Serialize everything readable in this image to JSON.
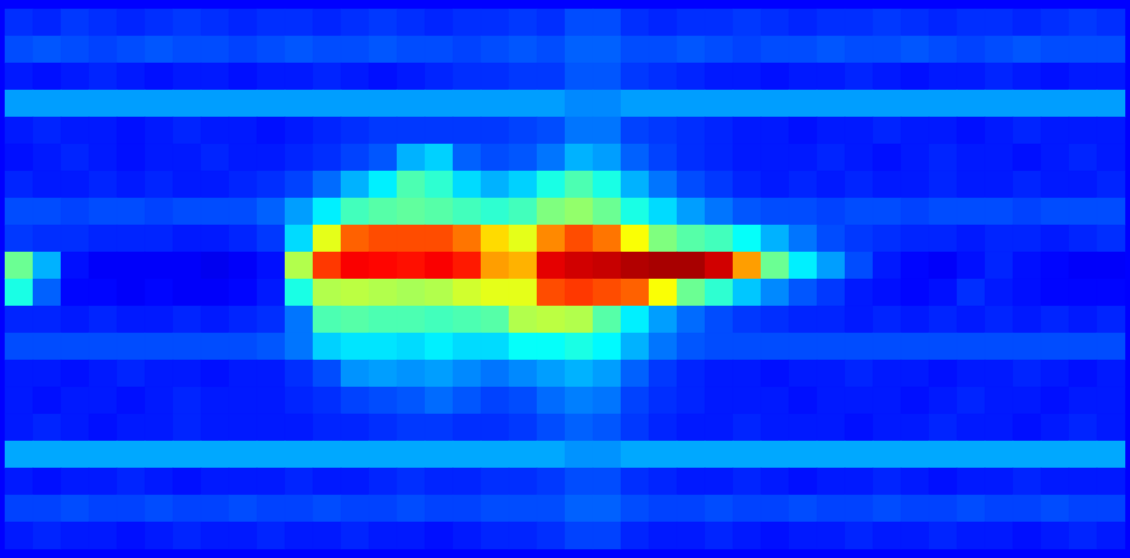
{
  "chart_data": {
    "type": "heatmap",
    "tick_labels": false,
    "color_range": [
      0,
      100
    ],
    "cells": [
      [
        17,
        16,
        18,
        17,
        16,
        17,
        18,
        17,
        16,
        17,
        17,
        16,
        17,
        18,
        17,
        16,
        17,
        17,
        18,
        17,
        20,
        20,
        17,
        16,
        17,
        17,
        18,
        17,
        16,
        17,
        17,
        18,
        17,
        16,
        17,
        17,
        16,
        17,
        18,
        17
      ],
      [
        20,
        21,
        20,
        19,
        20,
        21,
        20,
        20,
        19,
        20,
        21,
        20,
        20,
        21,
        20,
        20,
        19,
        20,
        21,
        20,
        22,
        22,
        20,
        20,
        21,
        20,
        19,
        20,
        20,
        21,
        20,
        20,
        21,
        20,
        19,
        20,
        21,
        20,
        20,
        20
      ],
      [
        15,
        14,
        15,
        16,
        15,
        14,
        15,
        15,
        14,
        15,
        15,
        16,
        15,
        14,
        15,
        16,
        17,
        17,
        18,
        18,
        21,
        21,
        18,
        17,
        16,
        15,
        15,
        14,
        15,
        15,
        16,
        15,
        14,
        15,
        15,
        16,
        15,
        14,
        15,
        15
      ],
      [
        28,
        28,
        28,
        28,
        28,
        28,
        28,
        28,
        28,
        28,
        28,
        28,
        28,
        28,
        28,
        28,
        28,
        28,
        28,
        28,
        26,
        26,
        28,
        28,
        28,
        28,
        28,
        28,
        28,
        28,
        28,
        28,
        28,
        28,
        28,
        28,
        28,
        28,
        28,
        28
      ],
      [
        15,
        16,
        15,
        15,
        14,
        15,
        16,
        15,
        15,
        14,
        15,
        16,
        17,
        18,
        18,
        18,
        18,
        18,
        19,
        20,
        24,
        24,
        19,
        18,
        17,
        16,
        15,
        15,
        14,
        15,
        15,
        16,
        15,
        15,
        14,
        15,
        16,
        15,
        15,
        15
      ],
      [
        14,
        15,
        16,
        15,
        14,
        15,
        15,
        16,
        15,
        15,
        16,
        17,
        19,
        21,
        30,
        33,
        22,
        20,
        21,
        24,
        30,
        28,
        22,
        19,
        17,
        16,
        15,
        15,
        15,
        16,
        15,
        14,
        15,
        16,
        15,
        15,
        14,
        15,
        16,
        15
      ],
      [
        16,
        15,
        15,
        16,
        15,
        16,
        15,
        15,
        16,
        17,
        19,
        23,
        30,
        36,
        45,
        42,
        34,
        30,
        33,
        40,
        45,
        40,
        30,
        24,
        20,
        18,
        16,
        15,
        16,
        15,
        16,
        15,
        15,
        16,
        15,
        15,
        16,
        15,
        15,
        16
      ],
      [
        20,
        20,
        19,
        20,
        20,
        19,
        20,
        20,
        20,
        22,
        28,
        36,
        44,
        46,
        47,
        46,
        44,
        42,
        44,
        50,
        52,
        48,
        40,
        34,
        28,
        24,
        21,
        20,
        20,
        19,
        20,
        20,
        19,
        20,
        20,
        20,
        19,
        20,
        20,
        20
      ],
      [
        18,
        17,
        17,
        16,
        16,
        16,
        15,
        15,
        16,
        18,
        34,
        60,
        78,
        80,
        80,
        80,
        76,
        66,
        60,
        74,
        80,
        76,
        62,
        50,
        46,
        44,
        38,
        30,
        24,
        20,
        18,
        17,
        16,
        16,
        15,
        16,
        16,
        15,
        16,
        17
      ],
      [
        48,
        30,
        14,
        12,
        12,
        12,
        12,
        11,
        12,
        14,
        55,
        82,
        88,
        87,
        86,
        88,
        85,
        72,
        70,
        90,
        92,
        93,
        95,
        96,
        96,
        92,
        72,
        48,
        36,
        28,
        20,
        15,
        13,
        12,
        14,
        16,
        14,
        13,
        12,
        12
      ],
      [
        40,
        22,
        13,
        13,
        12,
        13,
        12,
        12,
        13,
        15,
        40,
        55,
        56,
        55,
        54,
        55,
        58,
        60,
        60,
        80,
        82,
        80,
        78,
        62,
        48,
        42,
        32,
        26,
        21,
        18,
        15,
        14,
        13,
        14,
        17,
        15,
        14,
        13,
        13,
        13
      ],
      [
        16,
        16,
        15,
        16,
        15,
        15,
        16,
        15,
        16,
        17,
        24,
        45,
        46,
        45,
        45,
        44,
        45,
        46,
        55,
        56,
        55,
        46,
        36,
        28,
        23,
        20,
        18,
        17,
        16,
        16,
        15,
        16,
        15,
        16,
        15,
        16,
        15,
        16,
        15,
        16
      ],
      [
        20,
        20,
        20,
        20,
        20,
        20,
        20,
        20,
        20,
        21,
        24,
        33,
        35,
        35,
        34,
        36,
        34,
        34,
        38,
        38,
        40,
        37,
        30,
        24,
        21,
        20,
        20,
        20,
        20,
        20,
        20,
        20,
        20,
        20,
        20,
        20,
        20,
        20,
        20,
        20
      ],
      [
        15,
        15,
        14,
        15,
        16,
        15,
        15,
        14,
        15,
        15,
        17,
        20,
        27,
        28,
        27,
        28,
        26,
        24,
        26,
        28,
        30,
        28,
        22,
        18,
        16,
        15,
        15,
        14,
        15,
        15,
        16,
        15,
        15,
        14,
        15,
        15,
        16,
        15,
        14,
        15
      ],
      [
        15,
        14,
        15,
        15,
        14,
        15,
        16,
        15,
        15,
        15,
        16,
        17,
        19,
        20,
        21,
        23,
        21,
        19,
        20,
        23,
        25,
        24,
        19,
        17,
        16,
        15,
        15,
        15,
        14,
        15,
        15,
        15,
        14,
        15,
        16,
        15,
        15,
        14,
        15,
        15
      ],
      [
        15,
        16,
        15,
        14,
        15,
        15,
        16,
        15,
        15,
        15,
        15,
        16,
        16,
        17,
        18,
        18,
        17,
        17,
        18,
        20,
        22,
        21,
        18,
        16,
        15,
        15,
        16,
        15,
        15,
        15,
        14,
        15,
        15,
        16,
        15,
        15,
        14,
        15,
        16,
        15
      ],
      [
        29,
        29,
        29,
        29,
        29,
        29,
        29,
        29,
        29,
        29,
        29,
        29,
        29,
        29,
        29,
        29,
        29,
        29,
        29,
        29,
        27,
        27,
        29,
        29,
        29,
        29,
        29,
        29,
        29,
        29,
        29,
        29,
        29,
        29,
        29,
        29,
        29,
        29,
        29,
        29
      ],
      [
        15,
        14,
        15,
        15,
        16,
        15,
        14,
        15,
        15,
        15,
        16,
        15,
        15,
        16,
        17,
        16,
        16,
        17,
        17,
        18,
        20,
        20,
        17,
        16,
        15,
        15,
        16,
        15,
        14,
        15,
        15,
        16,
        15,
        14,
        15,
        15,
        16,
        15,
        15,
        15
      ],
      [
        19,
        19,
        20,
        19,
        19,
        20,
        19,
        19,
        20,
        19,
        19,
        20,
        19,
        19,
        20,
        19,
        19,
        20,
        20,
        20,
        22,
        22,
        20,
        19,
        19,
        20,
        19,
        19,
        20,
        19,
        19,
        20,
        19,
        19,
        20,
        19,
        19,
        20,
        19,
        19
      ],
      [
        15,
        16,
        15,
        15,
        14,
        15,
        16,
        15,
        15,
        16,
        15,
        15,
        16,
        15,
        15,
        14,
        15,
        16,
        16,
        17,
        19,
        19,
        16,
        15,
        15,
        16,
        15,
        14,
        15,
        15,
        16,
        15,
        15,
        16,
        15,
        15,
        14,
        15,
        16,
        15
      ]
    ]
  }
}
